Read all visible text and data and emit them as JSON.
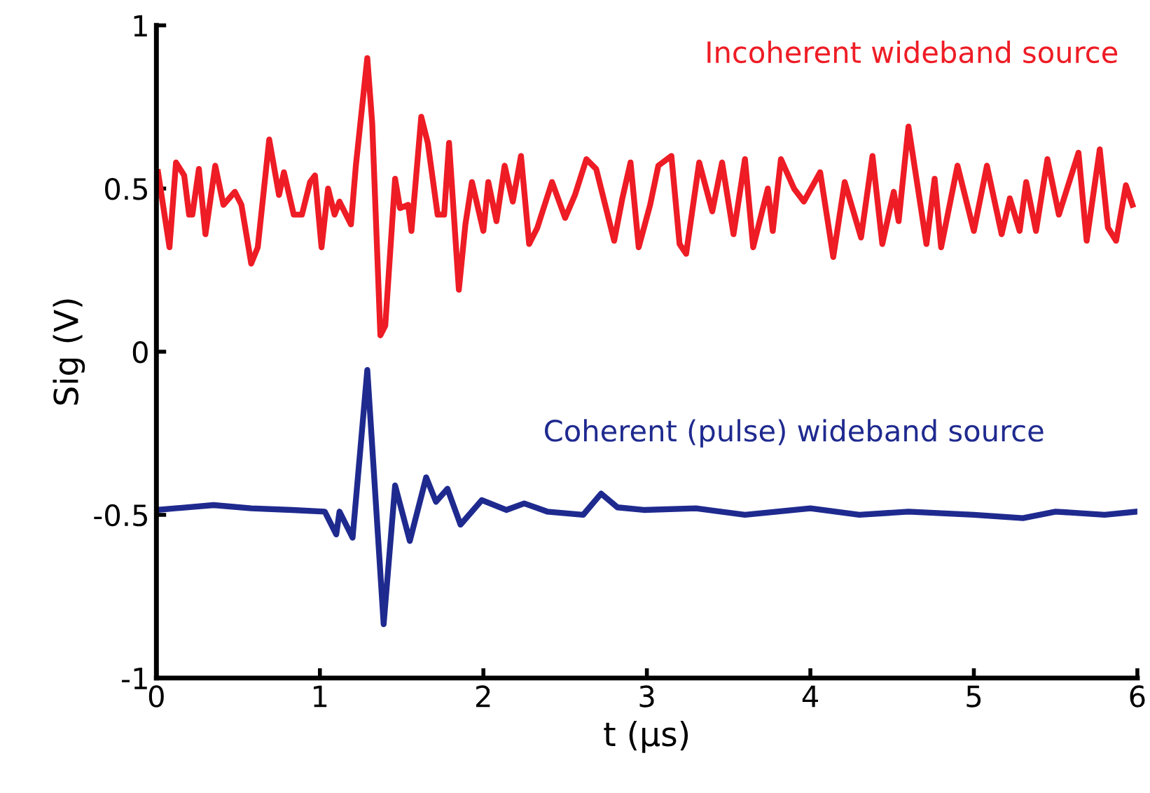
{
  "chart_data": {
    "type": "line",
    "xlabel": "t (μs)",
    "ylabel": "Sig (V)",
    "xlim": [
      0,
      6
    ],
    "ylim": [
      -1,
      1
    ],
    "xticks": [
      0,
      1,
      2,
      3,
      4,
      5,
      6
    ],
    "yticks": [
      -1,
      -0.5,
      0,
      0.5,
      1
    ],
    "grid": false,
    "legend": false,
    "marker": "none",
    "line_style": "solid",
    "series": [
      {
        "name": "Incoherent wideband source",
        "color": "#ee1c25",
        "x": [
          0.01,
          0.08,
          0.12,
          0.17,
          0.2,
          0.22,
          0.26,
          0.3,
          0.36,
          0.41,
          0.48,
          0.52,
          0.58,
          0.62,
          0.69,
          0.75,
          0.78,
          0.84,
          0.89,
          0.94,
          0.97,
          1.01,
          1.05,
          1.09,
          1.12,
          1.19,
          1.22,
          1.29,
          1.32,
          1.37,
          1.4,
          1.46,
          1.49,
          1.54,
          1.56,
          1.62,
          1.66,
          1.72,
          1.76,
          1.79,
          1.85,
          1.89,
          1.93,
          2.0,
          2.03,
          2.08,
          2.13,
          2.18,
          2.23,
          2.28,
          2.33,
          2.42,
          2.5,
          2.56,
          2.63,
          2.69,
          2.8,
          2.85,
          2.9,
          2.95,
          3.02,
          3.07,
          3.15,
          3.2,
          3.24,
          3.32,
          3.4,
          3.46,
          3.53,
          3.6,
          3.65,
          3.74,
          3.77,
          3.82,
          3.9,
          3.96,
          4.06,
          4.14,
          4.21,
          4.31,
          4.38,
          4.44,
          4.51,
          4.54,
          4.6,
          4.71,
          4.76,
          4.8,
          4.9,
          5.0,
          5.08,
          5.17,
          5.22,
          5.28,
          5.32,
          5.38,
          5.45,
          5.52,
          5.64,
          5.69,
          5.77,
          5.82,
          5.87,
          5.93,
          5.97
        ],
        "values": [
          0.55,
          0.32,
          0.58,
          0.54,
          0.42,
          0.42,
          0.56,
          0.36,
          0.57,
          0.45,
          0.49,
          0.45,
          0.27,
          0.32,
          0.65,
          0.48,
          0.55,
          0.42,
          0.42,
          0.52,
          0.54,
          0.32,
          0.5,
          0.42,
          0.46,
          0.39,
          0.57,
          0.9,
          0.7,
          0.05,
          0.08,
          0.53,
          0.44,
          0.45,
          0.37,
          0.72,
          0.64,
          0.42,
          0.42,
          0.64,
          0.19,
          0.39,
          0.52,
          0.37,
          0.52,
          0.4,
          0.57,
          0.46,
          0.6,
          0.33,
          0.38,
          0.52,
          0.41,
          0.48,
          0.59,
          0.56,
          0.34,
          0.47,
          0.58,
          0.32,
          0.45,
          0.57,
          0.6,
          0.33,
          0.3,
          0.58,
          0.43,
          0.58,
          0.36,
          0.59,
          0.32,
          0.5,
          0.37,
          0.59,
          0.5,
          0.46,
          0.55,
          0.29,
          0.52,
          0.35,
          0.6,
          0.33,
          0.49,
          0.4,
          0.69,
          0.33,
          0.53,
          0.32,
          0.57,
          0.37,
          0.57,
          0.36,
          0.47,
          0.37,
          0.52,
          0.37,
          0.59,
          0.42,
          0.61,
          0.34,
          0.62,
          0.38,
          0.34,
          0.51,
          0.45
        ]
      },
      {
        "name": "Coherent (pulse) wideband source",
        "color": "#1f2a8f",
        "x": [
          0.0,
          0.35,
          0.58,
          0.83,
          1.03,
          1.1,
          1.12,
          1.2,
          1.29,
          1.39,
          1.46,
          1.55,
          1.65,
          1.71,
          1.78,
          1.86,
          1.99,
          2.14,
          2.25,
          2.39,
          2.61,
          2.72,
          2.82,
          2.98,
          3.3,
          3.6,
          4.0,
          4.3,
          4.6,
          5.0,
          5.3,
          5.5,
          5.8,
          6.0
        ],
        "values": [
          -0.485,
          -0.47,
          -0.48,
          -0.485,
          -0.49,
          -0.56,
          -0.49,
          -0.57,
          -0.056,
          -0.835,
          -0.41,
          -0.58,
          -0.385,
          -0.46,
          -0.42,
          -0.53,
          -0.455,
          -0.485,
          -0.465,
          -0.49,
          -0.5,
          -0.435,
          -0.477,
          -0.485,
          -0.48,
          -0.5,
          -0.48,
          -0.5,
          -0.49,
          -0.5,
          -0.51,
          -0.49,
          -0.5,
          -0.49
        ]
      }
    ]
  }
}
